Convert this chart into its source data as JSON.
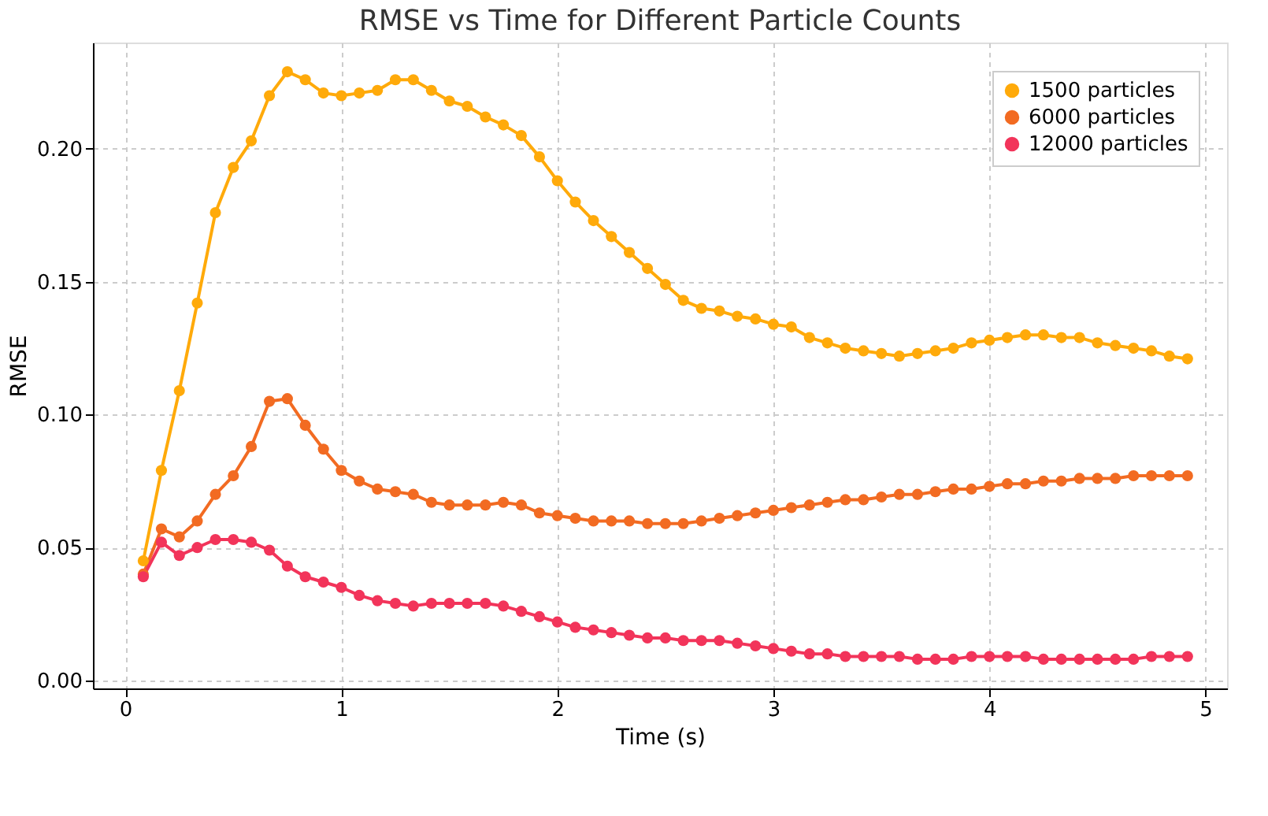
{
  "chart_data": {
    "type": "line",
    "title": "RMSE vs Time for Different Particle Counts",
    "xlabel": "Time (s)",
    "ylabel": "RMSE",
    "x": [
      0.083,
      0.167,
      0.25,
      0.333,
      0.417,
      0.5,
      0.583,
      0.667,
      0.75,
      0.833,
      0.917,
      1.0,
      1.083,
      1.167,
      1.25,
      1.333,
      1.417,
      1.5,
      1.583,
      1.667,
      1.75,
      1.833,
      1.917,
      2.0,
      2.083,
      2.167,
      2.25,
      2.333,
      2.417,
      2.5,
      2.583,
      2.667,
      2.75,
      2.833,
      2.917,
      3.0,
      3.083,
      3.167,
      3.25,
      3.333,
      3.417,
      3.5,
      3.583,
      3.667,
      3.75,
      3.833,
      3.917,
      4.0,
      4.083,
      4.167,
      4.25,
      4.333,
      4.417,
      4.5,
      4.583,
      4.667,
      4.75,
      4.833,
      4.917
    ],
    "series": [
      {
        "name": "1500 particles",
        "color": "#ffaa0a",
        "values": [
          0.045,
          0.079,
          0.109,
          0.142,
          0.176,
          0.193,
          0.203,
          0.22,
          0.229,
          0.226,
          0.221,
          0.22,
          0.221,
          0.222,
          0.226,
          0.226,
          0.222,
          0.218,
          0.216,
          0.212,
          0.209,
          0.205,
          0.197,
          0.188,
          0.18,
          0.173,
          0.167,
          0.161,
          0.155,
          0.149,
          0.143,
          0.14,
          0.139,
          0.137,
          0.136,
          0.134,
          0.133,
          0.129,
          0.127,
          0.125,
          0.124,
          0.123,
          0.122,
          0.123,
          0.124,
          0.125,
          0.127,
          0.128,
          0.129,
          0.13,
          0.13,
          0.129,
          0.129,
          0.127,
          0.126,
          0.125,
          0.124,
          0.122,
          0.121
        ]
      },
      {
        "name": "6000 particles",
        "color": "#f26b22",
        "values": [
          0.04,
          0.057,
          0.054,
          0.06,
          0.07,
          0.077,
          0.088,
          0.105,
          0.106,
          0.096,
          0.087,
          0.079,
          0.075,
          0.072,
          0.071,
          0.07,
          0.067,
          0.066,
          0.066,
          0.066,
          0.067,
          0.066,
          0.063,
          0.062,
          0.061,
          0.06,
          0.06,
          0.06,
          0.059,
          0.059,
          0.059,
          0.06,
          0.061,
          0.062,
          0.063,
          0.064,
          0.065,
          0.066,
          0.067,
          0.068,
          0.068,
          0.069,
          0.07,
          0.07,
          0.071,
          0.072,
          0.072,
          0.073,
          0.074,
          0.074,
          0.075,
          0.075,
          0.076,
          0.076,
          0.076,
          0.077,
          0.077,
          0.077,
          0.077
        ]
      },
      {
        "name": "12000 particles",
        "color": "#f2345a",
        "values": [
          0.039,
          0.052,
          0.047,
          0.05,
          0.053,
          0.053,
          0.052,
          0.049,
          0.043,
          0.039,
          0.037,
          0.035,
          0.032,
          0.03,
          0.029,
          0.028,
          0.029,
          0.029,
          0.029,
          0.029,
          0.028,
          0.026,
          0.024,
          0.022,
          0.02,
          0.019,
          0.018,
          0.017,
          0.016,
          0.016,
          0.015,
          0.015,
          0.015,
          0.014,
          0.013,
          0.012,
          0.011,
          0.01,
          0.01,
          0.009,
          0.009,
          0.009,
          0.009,
          0.008,
          0.008,
          0.008,
          0.009,
          0.009,
          0.009,
          0.009,
          0.008,
          0.008,
          0.008,
          0.008,
          0.008,
          0.008,
          0.009,
          0.009,
          0.009
        ]
      }
    ],
    "xlim": [
      -0.15,
      5.1
    ],
    "ylim": [
      -0.003,
      0.24
    ],
    "xticks": [
      0,
      1,
      2,
      3,
      4,
      5
    ],
    "yticks": [
      {
        "value": 0,
        "label": "0.00"
      },
      {
        "value": 0.05,
        "label": "0.05"
      },
      {
        "value": 0.1,
        "label": "0.10"
      },
      {
        "value": 0.15,
        "label": "0.15"
      },
      {
        "value": 0.2,
        "label": "0.20"
      }
    ],
    "grid": true,
    "legend": "top right",
    "marker": "circle",
    "line_style": "solid"
  }
}
